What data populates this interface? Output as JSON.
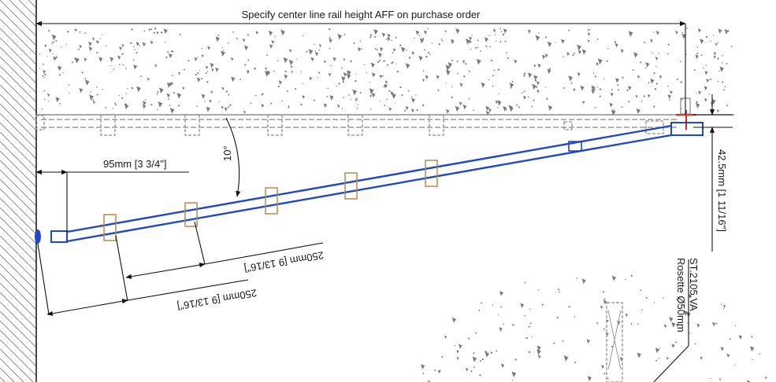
{
  "labels": {
    "top_note": "Specify center line rail height AFF on purchase order",
    "offset_95": "95mm [3 3/4\"]",
    "angle": "10°",
    "spacing_upper": "250mm [9 13/16\"]",
    "spacing_lower": "250mm [9 13/16\"]",
    "drop_height": "42.5mm [1 11/16\"]",
    "part_number": "ST.2105.VA",
    "rosette": "Rosette Ø50mm"
  },
  "colors": {
    "rail_active": "#1f47c8",
    "rail_ghost": "#9a9a9a",
    "clip": "#b88a4b",
    "marker": "#e0201c"
  }
}
